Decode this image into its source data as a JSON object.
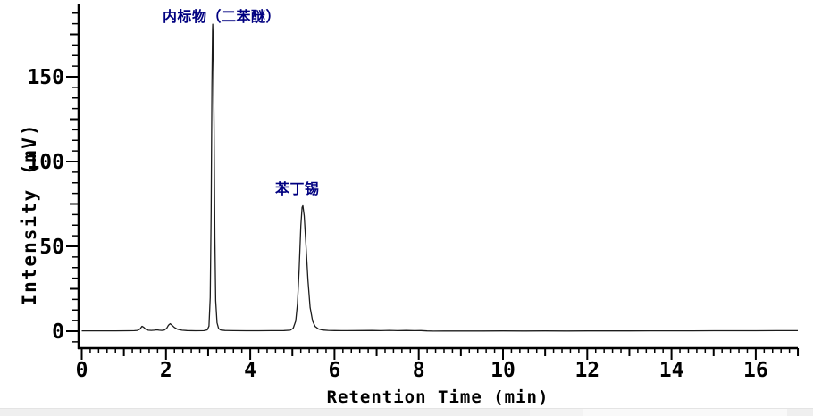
{
  "chart_data": {
    "type": "line",
    "title": "",
    "xlabel": "Retention Time (min)",
    "ylabel": "Intensity (mV)",
    "xlim": [
      0,
      17
    ],
    "ylim": [
      -10,
      192
    ],
    "grid": false,
    "legend": null,
    "x_major_ticks": [
      0,
      2,
      4,
      6,
      8,
      10,
      12,
      14,
      16
    ],
    "x_medium_step_min": 1,
    "x_minor_step_min": 0.2,
    "y_major_ticks": [
      0,
      50,
      100,
      150
    ],
    "y_minor_step_mV": 6.25,
    "axis_color": "#000000",
    "trace_color": "#1c1c1c",
    "annotation_color": "#000080",
    "peaks": [
      {
        "label": "内标物（二苯醚）",
        "retention_time_min": 3.1,
        "height_mV": 181
      },
      {
        "label": "苯丁锡",
        "retention_time_min": 5.2,
        "height_mV": 74
      }
    ],
    "trace": [
      [
        0,
        0.2
      ],
      [
        0.4,
        0.2
      ],
      [
        0.8,
        0.2
      ],
      [
        1.1,
        0.25
      ],
      [
        1.25,
        0.3
      ],
      [
        1.32,
        0.5
      ],
      [
        1.38,
        1.2
      ],
      [
        1.43,
        2.9
      ],
      [
        1.47,
        2.3
      ],
      [
        1.52,
        1.1
      ],
      [
        1.58,
        0.6
      ],
      [
        1.65,
        0.5
      ],
      [
        1.72,
        0.6
      ],
      [
        1.78,
        0.8
      ],
      [
        1.84,
        0.6
      ],
      [
        1.9,
        0.5
      ],
      [
        1.96,
        0.7
      ],
      [
        2.02,
        1.8
      ],
      [
        2.06,
        3.6
      ],
      [
        2.1,
        4.4
      ],
      [
        2.14,
        3.6
      ],
      [
        2.2,
        2.2
      ],
      [
        2.28,
        1.1
      ],
      [
        2.38,
        0.6
      ],
      [
        2.5,
        0.35
      ],
      [
        2.7,
        0.25
      ],
      [
        2.9,
        0.3
      ],
      [
        2.98,
        0.8
      ],
      [
        3.02,
        3
      ],
      [
        3.05,
        20
      ],
      [
        3.07,
        70
      ],
      [
        3.09,
        145
      ],
      [
        3.105,
        178
      ],
      [
        3.11,
        181
      ],
      [
        3.12,
        172
      ],
      [
        3.14,
        120
      ],
      [
        3.16,
        55
      ],
      [
        3.18,
        18
      ],
      [
        3.21,
        5
      ],
      [
        3.25,
        1.5
      ],
      [
        3.3,
        0.7
      ],
      [
        3.4,
        0.4
      ],
      [
        3.6,
        0.3
      ],
      [
        3.9,
        0.25
      ],
      [
        4.2,
        0.25
      ],
      [
        4.5,
        0.3
      ],
      [
        4.8,
        0.35
      ],
      [
        4.95,
        0.6
      ],
      [
        5.02,
        1.8
      ],
      [
        5.08,
        6
      ],
      [
        5.12,
        16
      ],
      [
        5.16,
        36
      ],
      [
        5.2,
        62
      ],
      [
        5.23,
        73
      ],
      [
        5.25,
        74
      ],
      [
        5.28,
        68
      ],
      [
        5.32,
        52
      ],
      [
        5.37,
        30
      ],
      [
        5.42,
        14
      ],
      [
        5.48,
        6
      ],
      [
        5.54,
        2.8
      ],
      [
        5.62,
        1.3
      ],
      [
        5.72,
        0.7
      ],
      [
        5.85,
        0.45
      ],
      [
        6,
        0.35
      ],
      [
        6.3,
        0.3
      ],
      [
        6.6,
        0.35
      ],
      [
        6.9,
        0.4
      ],
      [
        7.1,
        0.3
      ],
      [
        7.3,
        0.45
      ],
      [
        7.5,
        0.3
      ],
      [
        7.7,
        0.4
      ],
      [
        7.9,
        0.3
      ],
      [
        8.05,
        0.35
      ],
      [
        8.2,
        0.15
      ],
      [
        8.35,
        0.05
      ],
      [
        8.6,
        0.1
      ],
      [
        9,
        0.12
      ],
      [
        9.5,
        0.1
      ],
      [
        10,
        0.15
      ],
      [
        10.5,
        0.1
      ],
      [
        11,
        0.15
      ],
      [
        11.5,
        0.12
      ],
      [
        12,
        0.18
      ],
      [
        12.5,
        0.15
      ],
      [
        13,
        0.18
      ],
      [
        13.5,
        0.2
      ],
      [
        14,
        0.22
      ],
      [
        14.5,
        0.2
      ],
      [
        15,
        0.25
      ],
      [
        15.5,
        0.25
      ],
      [
        16,
        0.28
      ],
      [
        16.5,
        0.3
      ],
      [
        17,
        0.32
      ]
    ]
  }
}
